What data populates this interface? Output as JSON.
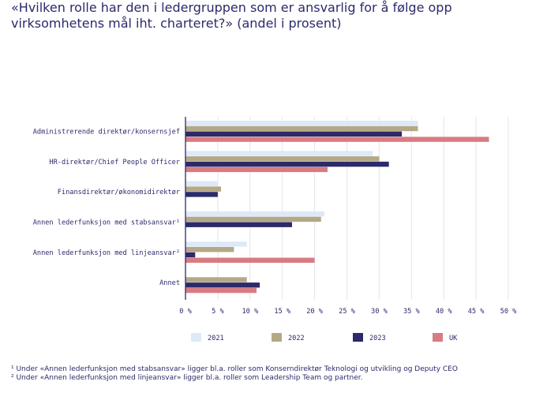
{
  "title": "«Hvilken rolle har den i ledergruppen som er ansvarlig for å følge opp virksomhetens mål iht. charteret?» (andel i prosent)",
  "chart_data": {
    "type": "bar",
    "orientation": "horizontal",
    "categories": [
      "Administrerende direktør/konsernsjef",
      "HR-direktør/Chief People Officer",
      "Finansdirektør/økonomidirektør",
      "Annen lederfunksjon med stabsansvar¹",
      "Annen lederfunksjon med linjeansvar²",
      "Annet"
    ],
    "series": [
      {
        "name": "2021",
        "color": "#dde9f7",
        "values": [
          36,
          29,
          5,
          21.5,
          9.5,
          0
        ]
      },
      {
        "name": "2022",
        "color": "#b5a886",
        "values": [
          36,
          30,
          5.5,
          21,
          7.5,
          9.5
        ]
      },
      {
        "name": "2023",
        "color": "#2b2a6b",
        "values": [
          33.5,
          31.5,
          5,
          16.5,
          1.5,
          11.5
        ]
      },
      {
        "name": "UK",
        "color": "#d97b82",
        "values": [
          47,
          22,
          0,
          0,
          20,
          11
        ]
      }
    ],
    "xlim": [
      0,
      50
    ],
    "xticks": [
      0,
      5,
      10,
      15,
      20,
      25,
      30,
      35,
      40,
      45,
      50
    ],
    "xtick_labels": [
      "0 %",
      "5 %",
      "10 %",
      "15 %",
      "20 %",
      "25 %",
      "30 %",
      "35 %",
      "40 %",
      "45 %",
      "50 %"
    ],
    "grid": true,
    "legend_position": "bottom"
  },
  "footnotes": [
    "¹ Under «Annen lederfunksjon med stabsansvar» ligger bl.a. roller som Konserndirektør Teknologi og utvikling og Deputy CEO",
    "² Under «Annen lederfunksjon med linjeansvar» ligger bl.a. roller som Leadership Team og partner."
  ]
}
